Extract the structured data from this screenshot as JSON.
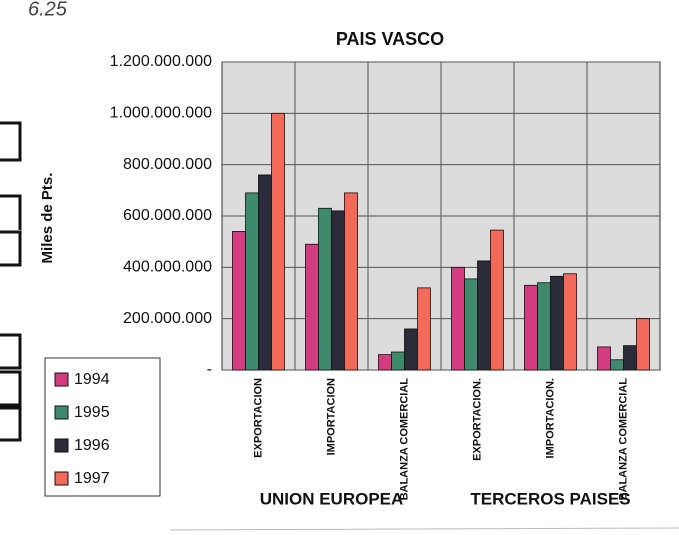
{
  "chart_data": {
    "type": "bar",
    "annotation": "6.25",
    "title": "PAIS VASCO",
    "y_label": "Miles de Pts.",
    "categories": [
      "EXPORTACION",
      "IMPORTACION",
      "BALANZA COMERCIAL",
      "EXPORTACION.",
      "IMPORTACION.",
      "BALANZA COMERCIAL"
    ],
    "groups": [
      "UNION EUROPEA",
      "TERCEROS PAISES"
    ],
    "series": [
      {
        "name": "1994",
        "color": "#d43c80",
        "values": [
          540000000,
          490000000,
          60000000,
          400000000,
          330000000,
          90000000
        ]
      },
      {
        "name": "1995",
        "color": "#3f8a6e",
        "values": [
          690000000,
          630000000,
          70000000,
          355000000,
          340000000,
          40000000
        ]
      },
      {
        "name": "1996",
        "color": "#2b2b3a",
        "values": [
          760000000,
          620000000,
          160000000,
          425000000,
          365000000,
          95000000
        ]
      },
      {
        "name": "1997",
        "color": "#f46a5a",
        "values": [
          1000000000,
          690000000,
          320000000,
          545000000,
          375000000,
          200000000
        ]
      }
    ],
    "ylim": [
      0,
      1200000000
    ],
    "yticks": [
      {
        "value": 0,
        "label": "-"
      },
      {
        "value": 200000000,
        "label": "200.000.000"
      },
      {
        "value": 400000000,
        "label": "400.000.000"
      },
      {
        "value": 600000000,
        "label": "600.000.000"
      },
      {
        "value": 800000000,
        "label": "800.000.000"
      },
      {
        "value": 1000000000,
        "label": "1.000.000.000"
      },
      {
        "value": 1200000000,
        "label": "1.200.000.000"
      }
    ],
    "grid": true,
    "legend": "lower left"
  }
}
